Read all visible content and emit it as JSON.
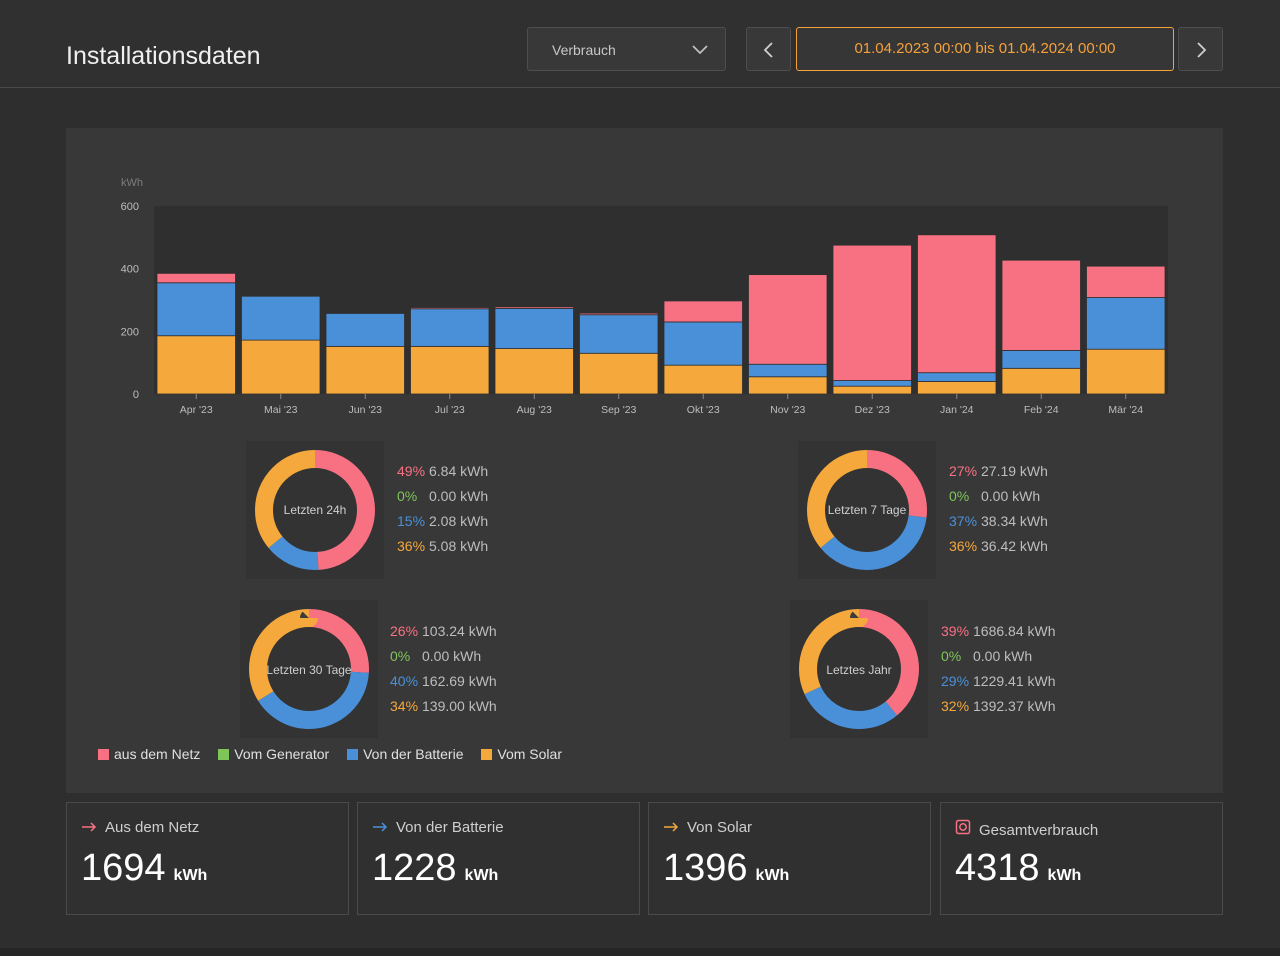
{
  "header": {
    "title": "Installationsdaten",
    "select_value": "Verbrauch",
    "date_range": "01.04.2023 00:00 bis 01.04.2024 00:00",
    "prev_icon": "chevron-left-icon",
    "next_icon": "chevron-right-icon"
  },
  "colors": {
    "grid": "#f87183",
    "generator": "#7ec65a",
    "battery": "#4a90d9",
    "solar": "#f5a83c",
    "accent": "#f5a13a"
  },
  "chart_data": {
    "type": "bar",
    "stacked": true,
    "ylabel": "kWh",
    "ylim": [
      0,
      600
    ],
    "yticks": [
      "600",
      "400",
      "200",
      "0"
    ],
    "categories": [
      "Apr '23",
      "Mai '23",
      "Jun '23",
      "Jul '23",
      "Aug '23",
      "Sep '23",
      "Okt '23",
      "Nov '23",
      "Dez '23",
      "Jan '24",
      "Feb '24",
      "Mär '24"
    ],
    "series": [
      {
        "name": "Vom Solar",
        "color": "#f5a83c",
        "values": [
          186,
          172,
          152,
          152,
          145,
          130,
          92,
          55,
          25,
          40,
          82,
          143
        ]
      },
      {
        "name": "Von der Batterie",
        "color": "#4a90d9",
        "values": [
          169,
          140,
          105,
          120,
          128,
          123,
          138,
          40,
          18,
          28,
          57,
          165
        ]
      },
      {
        "name": "Vom Generator",
        "color": "#7ec65a",
        "values": [
          0,
          0,
          0,
          0,
          0,
          0,
          0,
          0,
          0,
          0,
          0,
          0
        ]
      },
      {
        "name": "aus dem Netz",
        "color": "#f87183",
        "values": [
          30,
          0,
          0,
          4,
          5,
          5,
          67,
          286,
          432,
          440,
          288,
          100
        ]
      }
    ]
  },
  "donuts": [
    {
      "label": "Letzten 24h",
      "stats": [
        {
          "pct": "49%",
          "kwh": "6.84 kWh"
        },
        {
          "pct": "0%",
          "kwh": "0.00 kWh"
        },
        {
          "pct": "15%",
          "kwh": "2.08 kWh"
        },
        {
          "pct": "36%",
          "kwh": "5.08 kWh"
        }
      ]
    },
    {
      "label": "Letzten 7 Tage",
      "stats": [
        {
          "pct": "27%",
          "kwh": "27.19 kWh"
        },
        {
          "pct": "0%",
          "kwh": "0.00 kWh"
        },
        {
          "pct": "37%",
          "kwh": "38.34 kWh"
        },
        {
          "pct": "36%",
          "kwh": "36.42 kWh"
        }
      ]
    },
    {
      "label": "Letzten 30 Tage",
      "stats": [
        {
          "pct": "26%",
          "kwh": "103.24 kWh"
        },
        {
          "pct": "0%",
          "kwh": "0.00 kWh"
        },
        {
          "pct": "40%",
          "kwh": "162.69 kWh"
        },
        {
          "pct": "34%",
          "kwh": "139.00 kWh"
        }
      ]
    },
    {
      "label": "Letztes Jahr",
      "stats": [
        {
          "pct": "39%",
          "kwh": "1686.84 kWh"
        },
        {
          "pct": "0%",
          "kwh": "0.00 kWh"
        },
        {
          "pct": "29%",
          "kwh": "1229.41 kWh"
        },
        {
          "pct": "32%",
          "kwh": "1392.37 kWh"
        }
      ]
    }
  ],
  "legend": [
    "aus dem Netz",
    "Vom Generator",
    "Von der Batterie",
    "Vom Solar"
  ],
  "summary": [
    {
      "label": "Aus dem Netz",
      "value": "1694",
      "unit": "kWh",
      "icon": "arrow-right-icon"
    },
    {
      "label": "Von der Batterie",
      "value": "1228",
      "unit": "kWh",
      "icon": "arrow-right-icon"
    },
    {
      "label": "Von Solar",
      "value": "1396",
      "unit": "kWh",
      "icon": "arrow-right-icon"
    },
    {
      "label": "Gesamtverbrauch",
      "value": "4318",
      "unit": "kWh",
      "icon": "plug-icon"
    }
  ]
}
